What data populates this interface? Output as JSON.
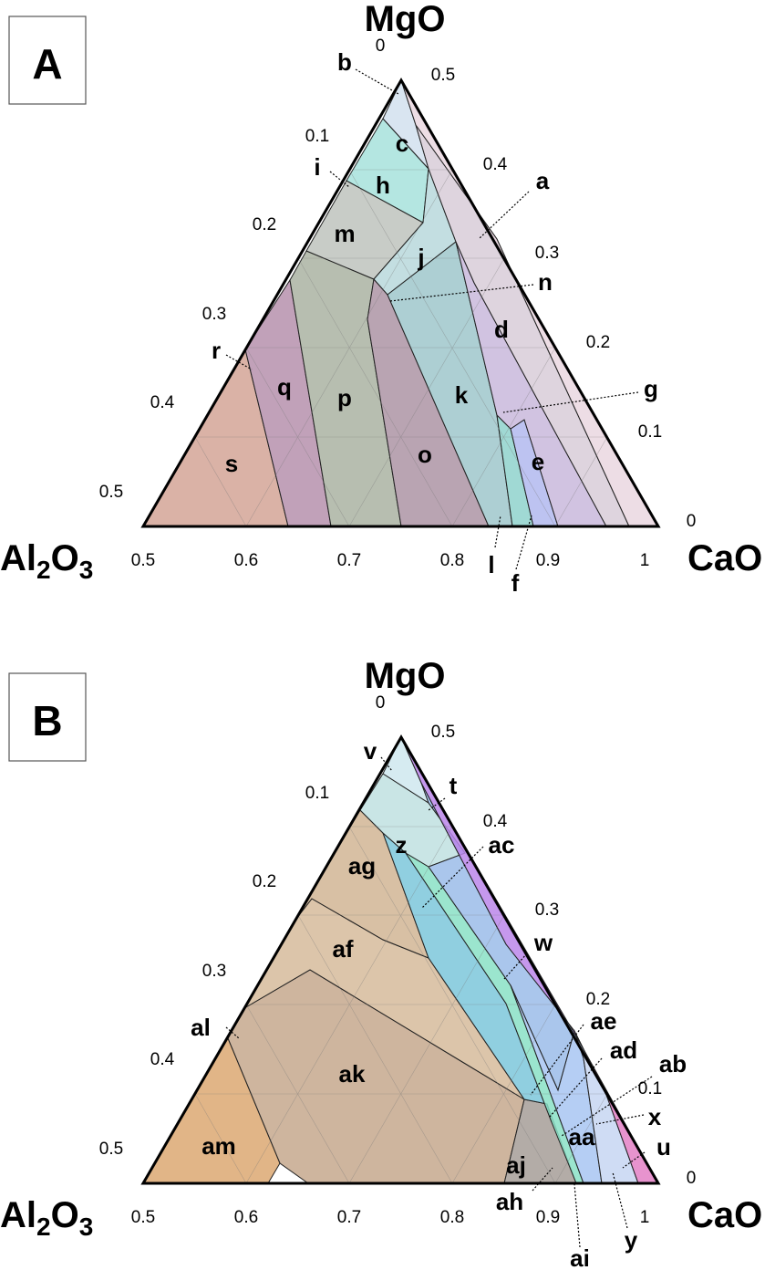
{
  "panels": [
    {
      "id": "A",
      "letter": "A",
      "vertices": {
        "top": "MgO",
        "left": "Al2O3",
        "right": "CaO"
      },
      "apex": [
        440,
        88
      ],
      "base_left": [
        157,
        577
      ],
      "base_right": [
        722,
        577
      ],
      "base_ticks": [
        "0.5",
        "0.6",
        "0.7",
        "0.8",
        "0.9",
        "1"
      ],
      "left_ticks": [
        "0",
        "0.1",
        "0.2",
        "0.3",
        "0.4",
        "0.5"
      ],
      "right_ticks": [
        "0.5",
        "0.4",
        "0.3",
        "0.2",
        "0.1",
        "0"
      ],
      "regions": [
        {
          "label": "s",
          "color": "#d3a497"
        },
        {
          "label": "q",
          "color": "#b691ad"
        },
        {
          "label": "p",
          "color": "#aab3a2"
        },
        {
          "label": "o",
          "color": "#ad94a4"
        },
        {
          "label": "k",
          "color": "#9fc7cb"
        },
        {
          "label": "e",
          "color": "#c9b9dc"
        },
        {
          "label": "d",
          "color": "#d8ccd8"
        },
        {
          "label": "a",
          "color": "#ead7e0"
        },
        {
          "label": "m",
          "color": "#bec3bd"
        },
        {
          "label": "h",
          "color": "#a7e2dc"
        },
        {
          "label": "c",
          "color": "#d2e0ee"
        },
        {
          "label": "j",
          "color": "#b9d8dc"
        },
        {
          "label": "l",
          "color": "#8fd2cc"
        },
        {
          "label": "f",
          "color": "#b2b8ee"
        }
      ],
      "labels": [
        {
          "text": "b"
        },
        {
          "text": "c"
        },
        {
          "text": "a"
        },
        {
          "text": "i"
        },
        {
          "text": "h"
        },
        {
          "text": "m"
        },
        {
          "text": "j"
        },
        {
          "text": "n"
        },
        {
          "text": "d"
        },
        {
          "text": "r"
        },
        {
          "text": "q"
        },
        {
          "text": "p"
        },
        {
          "text": "k"
        },
        {
          "text": "g"
        },
        {
          "text": "o"
        },
        {
          "text": "e"
        },
        {
          "text": "s"
        },
        {
          "text": "l"
        },
        {
          "text": "f"
        }
      ]
    },
    {
      "id": "B",
      "letter": "B",
      "vertices": {
        "top": "MgO",
        "left": "Al2O3",
        "right": "CaO"
      },
      "apex": [
        440,
        808
      ],
      "base_left": [
        157,
        1297
      ],
      "base_right": [
        722,
        1297
      ],
      "base_ticks": [
        "0.5",
        "0.6",
        "0.7",
        "0.8",
        "0.9",
        "1"
      ],
      "left_ticks": [
        "0",
        "0.1",
        "0.2",
        "0.3",
        "0.4",
        "0.5"
      ],
      "right_ticks": [
        "0.5",
        "0.4",
        "0.3",
        "0.2",
        "0.1",
        "0"
      ],
      "regions": [
        {
          "label": "am",
          "color": "#dca872"
        },
        {
          "label": "ak",
          "color": "#c5a88d"
        },
        {
          "label": "af",
          "color": "#d6bb9b"
        },
        {
          "label": "ag",
          "color": "#d1b594"
        },
        {
          "label": "aj",
          "color": "#a69d98"
        },
        {
          "label": "z",
          "color": "#bfe1e0"
        },
        {
          "label": "ac",
          "color": "#8ae0c6"
        },
        {
          "label": "w",
          "color": "#9bbce9"
        },
        {
          "label": "aa",
          "color": "#a8c6f2"
        },
        {
          "label": "t",
          "color": "#bb86ea"
        },
        {
          "label": "u",
          "color": "#e380c6"
        },
        {
          "label": "ae",
          "color": "#7cc7da"
        },
        {
          "label": "v",
          "color": "#cfe8ee"
        },
        {
          "label": "y",
          "color": "#c7d6f2"
        }
      ],
      "labels": [
        {
          "text": "v"
        },
        {
          "text": "t"
        },
        {
          "text": "z"
        },
        {
          "text": "ac"
        },
        {
          "text": "ag"
        },
        {
          "text": "af"
        },
        {
          "text": "w"
        },
        {
          "text": "al"
        },
        {
          "text": "ae"
        },
        {
          "text": "ak"
        },
        {
          "text": "ad"
        },
        {
          "text": "ab"
        },
        {
          "text": "x"
        },
        {
          "text": "aa"
        },
        {
          "text": "u"
        },
        {
          "text": "am"
        },
        {
          "text": "aj"
        },
        {
          "text": "ah"
        },
        {
          "text": "y"
        },
        {
          "text": "ai"
        }
      ]
    }
  ]
}
